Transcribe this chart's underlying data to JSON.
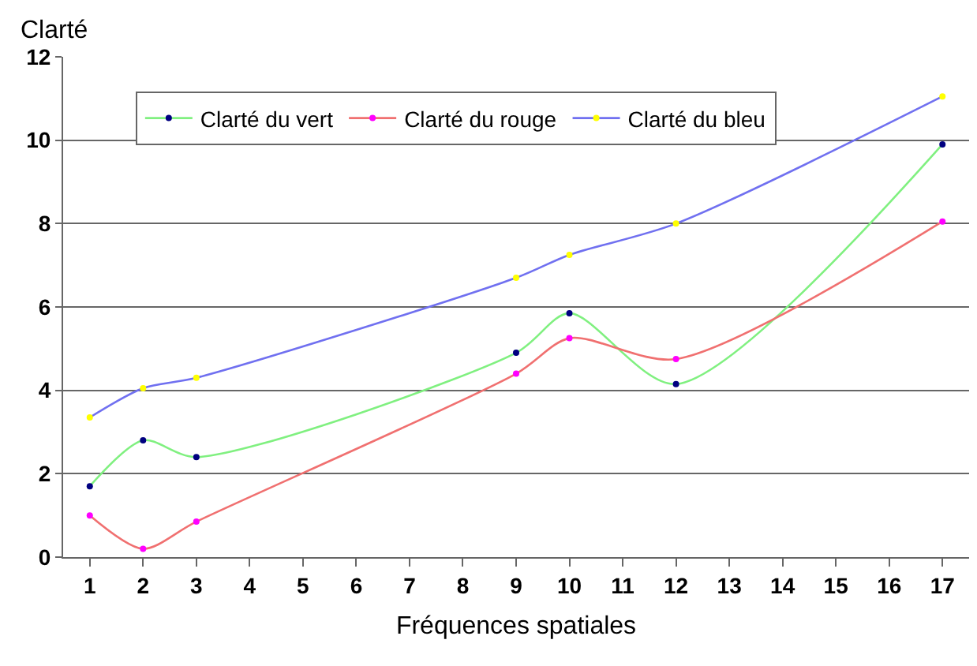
{
  "chart_data": {
    "type": "line",
    "xlabel": "Fréquences spatiales",
    "ylabel": "Clarté",
    "xlim": [
      0.5,
      17.5
    ],
    "xticks": [
      1,
      2,
      3,
      4,
      5,
      6,
      7,
      8,
      9,
      10,
      11,
      12,
      13,
      14,
      15,
      16,
      17
    ],
    "ylim": [
      0,
      12
    ],
    "yticks": [
      0,
      2,
      4,
      6,
      8,
      10,
      12
    ],
    "grid": "y",
    "legend": "top",
    "marker": "circle",
    "line_style": "solid",
    "series": [
      {
        "name": "Clarté du vert",
        "color": "#80f080",
        "colors": [
          "#000080",
          "#000080",
          "#000080",
          "#000080",
          "#000080",
          "#000080",
          "#000080"
        ],
        "x": [
          1,
          2,
          3,
          9,
          10,
          12,
          17
        ],
        "values": [
          1.7,
          2.8,
          2.4,
          4.9,
          5.85,
          4.15,
          9.9
        ]
      },
      {
        "name": "Clarté du rouge",
        "color": "#f07070",
        "colors": [
          "#ff00ff",
          "#ff00ff",
          "#ff00ff",
          "#ff00ff",
          "#ff00ff",
          "#ff00ff",
          "#ff00ff"
        ],
        "x": [
          1,
          2,
          3,
          9,
          10,
          12,
          17
        ],
        "values": [
          1.0,
          0.2,
          0.85,
          4.4,
          5.25,
          4.75,
          8.05
        ]
      },
      {
        "name": "Clarté du bleu",
        "color": "#7070f0",
        "colors": [
          "#ffff00",
          "#ffff00",
          "#ffff00",
          "#ffff00",
          "#ffff00",
          "#ffff00",
          "#ffff00"
        ],
        "x": [
          1,
          2,
          3,
          9,
          10,
          12,
          17
        ],
        "values": [
          3.35,
          4.05,
          4.3,
          6.7,
          7.25,
          8.0,
          11.05
        ]
      }
    ]
  }
}
